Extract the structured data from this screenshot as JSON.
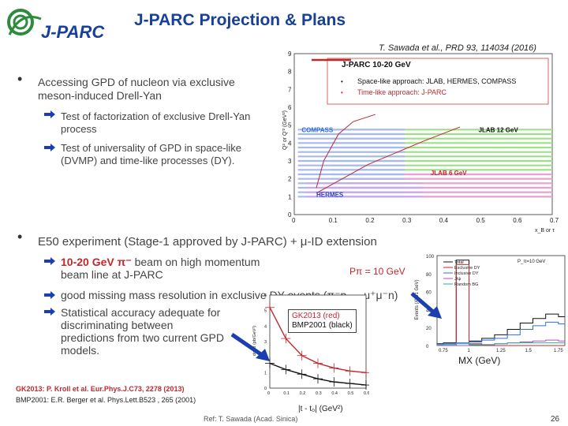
{
  "header": {
    "logo_text": "J-PARC",
    "title": "J-PARC Projection & Plans",
    "citation": "T. Sawada et al., PRD 93, 114034 (2016)"
  },
  "bullets": {
    "first": {
      "text": "Accessing GPD of nucleon via exclusive meson-induced Drell-Yan",
      "subs": [
        "Test of factorization of exclusive Drell-Yan process",
        "Test of universality of GPD in space-like (DVMP) and time-like processes (DY)."
      ]
    },
    "second": {
      "text": "E50 experiment (Stage-1 approved by J-PARC) + μ-ID extension",
      "subs": [
        {
          "red": "10-20 GeV π⁻",
          "rest": " beam on high momentum beam line at J-PARC"
        },
        {
          "red": "",
          "rest": "good missing mass resolution in exclusive DY events (π⁻p → μ⁺μ⁻n)"
        },
        {
          "red": "",
          "rest": "Statistical accuracy adequate for discriminating between predictions from two current GPD models."
        }
      ]
    }
  },
  "chart_data": [
    {
      "type": "area",
      "xlabel": "x_B or τ",
      "ylabel": "Q² or Q'² (GeV²)",
      "xlim": [
        0,
        0.7
      ],
      "ylim": [
        0,
        9
      ],
      "xticks": [
        "0",
        "0.1",
        "0.2",
        "0.3",
        "0.4",
        "0.5",
        "0.6",
        "0.7"
      ],
      "yticks": [
        "0",
        "1",
        "2",
        "3",
        "4",
        "5",
        "6",
        "7",
        "8",
        "9"
      ],
      "legend": {
        "title": "J-PARC 10-20 GeV",
        "items": [
          {
            "text": "Space-like approach: JLAB, HERMES, COMPASS",
            "color": "#111111"
          },
          {
            "text": "Time-like approach: J-PARC",
            "color": "#c0282d"
          }
        ]
      },
      "region_labels": [
        {
          "text": "COMPASS",
          "color": "#2b6fd6"
        },
        {
          "text": "JLAB 12 GeV",
          "color": "#111111"
        },
        {
          "text": "JLAB 6 GeV",
          "color": "#c0282d"
        },
        {
          "text": "HERMES",
          "color": "#2b3fb0"
        }
      ],
      "regions": [
        {
          "name": "JLAB 12 GeV",
          "color": "#9ee08a",
          "x_range": [
            0.1,
            0.7
          ],
          "y_range": [
            1,
            5
          ]
        },
        {
          "name": "JLAB 6 GeV",
          "color": "#f0a0d8",
          "x_range": [
            0.15,
            0.7
          ],
          "y_range": [
            1,
            2.5
          ]
        },
        {
          "name": "COMPASS",
          "color": "#a8b8f0",
          "x_range": [
            0.01,
            0.3
          ],
          "y_range": [
            1,
            5
          ]
        },
        {
          "name": "HERMES",
          "color": "#c8a8f0",
          "x_range": [
            0.03,
            0.35
          ],
          "y_range": [
            1,
            2
          ]
        }
      ]
    },
    {
      "type": "line",
      "xlabel": "M_X (GeV)",
      "ylabel": "Events (/0.01 GeV)",
      "xlim": [
        0.7,
        1.8
      ],
      "ylim": [
        0,
        100
      ],
      "xticks": [
        "0.75",
        "1",
        "1.25",
        "1.5",
        "1.75"
      ],
      "yticks": [
        "0",
        "20",
        "40",
        "60",
        "80",
        "100"
      ],
      "annotation": "P_π=10 GeV",
      "series": [
        {
          "name": "Total",
          "color": "#111111",
          "values": [
            2,
            3,
            95,
            5,
            8,
            12,
            18,
            25,
            30,
            35,
            32
          ]
        },
        {
          "name": "Exclusive DY",
          "color": "#c0282d",
          "values": [
            0,
            0,
            90,
            2,
            0,
            0,
            0,
            0,
            0,
            0,
            0
          ]
        },
        {
          "name": "Inclusive DY",
          "color": "#2b6fd6",
          "values": [
            1,
            2,
            3,
            4,
            6,
            8,
            12,
            18,
            22,
            26,
            24
          ]
        },
        {
          "name": "J/ψ",
          "color": "#b04fc0",
          "values": [
            0,
            0,
            0,
            1,
            1,
            2,
            3,
            4,
            5,
            6,
            5
          ]
        },
        {
          "name": "Random BG",
          "color": "#2aa8a8",
          "values": [
            1,
            1,
            2,
            1,
            1,
            2,
            3,
            3,
            3,
            3,
            3
          ]
        }
      ]
    },
    {
      "type": "line",
      "xlabel": "|t - t₀| (GeV²)",
      "ylabel": "dσ/dt (pb/GeV²)",
      "xlim": [
        0,
        0.6
      ],
      "ylim": [
        0,
        6
      ],
      "xticks": [
        "0",
        "0.1",
        "0.2",
        "0.3",
        "0.4",
        "0.5",
        "0.6"
      ],
      "yticks": [
        "0",
        "1",
        "2",
        "3",
        "4",
        "5",
        "6"
      ],
      "legend": {
        "red": "GK2013 (red)",
        "black": "BMP2001 (black)"
      },
      "series": [
        {
          "name": "GK2013",
          "color": "#c0282d",
          "x": [
            0.0,
            0.1,
            0.2,
            0.3,
            0.4,
            0.5,
            0.6
          ],
          "y": [
            5.2,
            3.2,
            2.1,
            1.6,
            1.3,
            1.1,
            1.0
          ]
        },
        {
          "name": "BMP2001",
          "color": "#111111",
          "x": [
            0.0,
            0.1,
            0.2,
            0.3,
            0.4,
            0.5,
            0.6
          ],
          "y": [
            1.6,
            1.2,
            0.9,
            0.6,
            0.4,
            0.3,
            0.2
          ]
        }
      ]
    }
  ],
  "labels": {
    "p_pi": "Pπ = 10 GeV",
    "mx": "MX (GeV)",
    "t_axis": "|t - t₀|  (GeV²)"
  },
  "references": {
    "gk": "GK2013: P. Kroll et al. Eur.Phys.J.C73, 2278 (2013)",
    "bmp": "BMP2001: E.R. Berger et al. Phys.Lett.B523 , 265 (2001)"
  },
  "footer": {
    "ref": "Ref: T. Sawada (Acad. Sinica)",
    "page": "26"
  }
}
